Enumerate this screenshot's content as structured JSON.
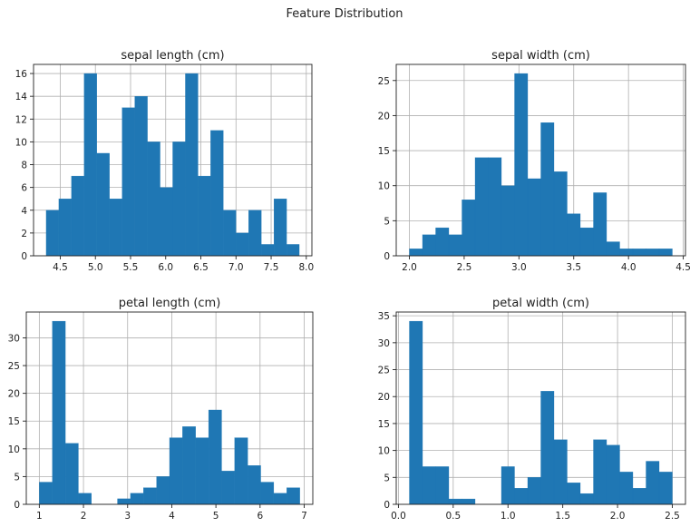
{
  "figure": {
    "suptitle": "Feature Distribution"
  },
  "chart_data": [
    {
      "type": "bar",
      "title": "sepal length (cm)",
      "bins": {
        "start": 4.3,
        "width": 0.18,
        "count": 20
      },
      "values": [
        4,
        5,
        7,
        16,
        9,
        5,
        13,
        14,
        10,
        6,
        10,
        16,
        7,
        11,
        4,
        2,
        4,
        1,
        5,
        1
      ],
      "xlim": [
        4.12,
        8.08
      ],
      "ylim": [
        0,
        16.8
      ],
      "xticks": [
        4.5,
        5.0,
        5.5,
        6.0,
        6.5,
        7.0,
        7.5,
        8.0
      ],
      "xtick_labels": [
        "4.5",
        "5.0",
        "5.5",
        "6.0",
        "6.5",
        "7.0",
        "7.5",
        "8.0"
      ],
      "yticks": [
        0,
        2,
        4,
        6,
        8,
        10,
        12,
        14,
        16
      ],
      "ytick_labels": [
        "0",
        "2",
        "4",
        "6",
        "8",
        "10",
        "12",
        "14",
        "16"
      ],
      "grid": true
    },
    {
      "type": "bar",
      "title": "sepal width (cm)",
      "bins": {
        "start": 2.0,
        "width": 0.12,
        "count": 20
      },
      "values": [
        1,
        3,
        4,
        3,
        8,
        14,
        14,
        10,
        26,
        11,
        19,
        12,
        6,
        4,
        9,
        2,
        1,
        1,
        1,
        1
      ],
      "xlim": [
        1.88,
        4.52
      ],
      "ylim": [
        0,
        27.3
      ],
      "xticks": [
        2.0,
        2.5,
        3.0,
        3.5,
        4.0,
        4.5
      ],
      "xtick_labels": [
        "2.0",
        "2.5",
        "3.0",
        "3.5",
        "4.0",
        "4.5"
      ],
      "yticks": [
        0,
        5,
        10,
        15,
        20,
        25
      ],
      "ytick_labels": [
        "0",
        "5",
        "10",
        "15",
        "20",
        "25"
      ],
      "grid": true
    },
    {
      "type": "bar",
      "title": "petal length (cm)",
      "bins": {
        "start": 1.0,
        "width": 0.295,
        "count": 20
      },
      "values": [
        4,
        33,
        11,
        2,
        0,
        0,
        1,
        2,
        3,
        5,
        12,
        14,
        12,
        17,
        6,
        12,
        7,
        4,
        2,
        3
      ],
      "xlim": [
        0.705,
        7.195
      ],
      "ylim": [
        0,
        34.65
      ],
      "xticks": [
        1,
        2,
        3,
        4,
        5,
        6,
        7
      ],
      "xtick_labels": [
        "1",
        "2",
        "3",
        "4",
        "5",
        "6",
        "7"
      ],
      "yticks": [
        0,
        5,
        10,
        15,
        20,
        25,
        30
      ],
      "ytick_labels": [
        "0",
        "5",
        "10",
        "15",
        "20",
        "25",
        "30"
      ],
      "grid": true
    },
    {
      "type": "bar",
      "title": "petal width (cm)",
      "bins": {
        "start": 0.1,
        "width": 0.12,
        "count": 20
      },
      "values": [
        34,
        7,
        7,
        1,
        1,
        0,
        0,
        7,
        3,
        5,
        21,
        12,
        4,
        2,
        12,
        11,
        6,
        3,
        8,
        6
      ],
      "xlim": [
        -0.02,
        2.62
      ],
      "ylim": [
        0,
        35.7
      ],
      "xticks": [
        0.0,
        0.5,
        1.0,
        1.5,
        2.0,
        2.5
      ],
      "xtick_labels": [
        "0.0",
        "0.5",
        "1.0",
        "1.5",
        "2.0",
        "2.5"
      ],
      "yticks": [
        0,
        5,
        10,
        15,
        20,
        25,
        30,
        35
      ],
      "ytick_labels": [
        "0",
        "5",
        "10",
        "15",
        "20",
        "25",
        "30",
        "35"
      ],
      "grid": true
    }
  ]
}
